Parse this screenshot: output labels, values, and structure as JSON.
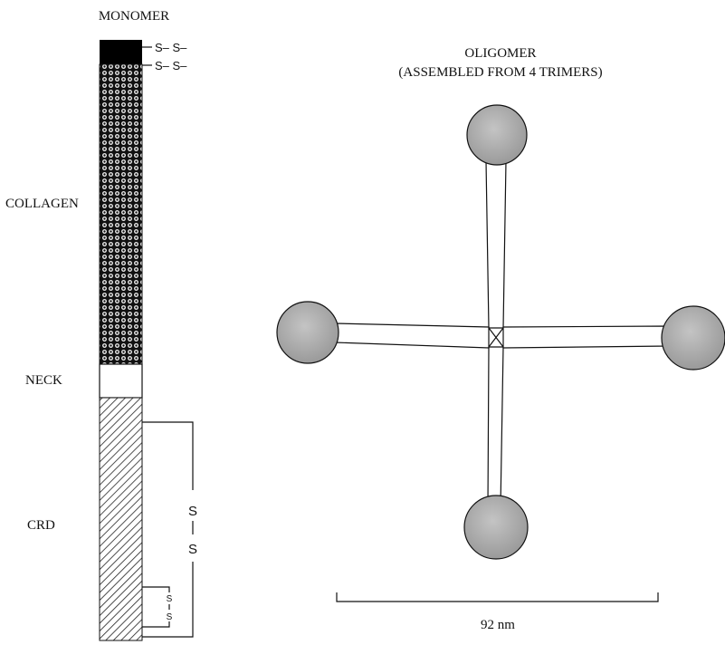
{
  "monomer": {
    "title": "MONOMER",
    "domains": {
      "collagen": "COLLAGEN",
      "neck": "NECK",
      "crd": "CRD"
    },
    "disulfide_top_1": "S– S–",
    "disulfide_top_2": "S– S–",
    "crd_bridge_s1": "S",
    "crd_bridge_bar": "|",
    "crd_bridge_s2": "S",
    "crd_small_s1": "S",
    "crd_small_s2": "S"
  },
  "oligomer": {
    "title_line1": "OLIGOMER",
    "title_line2": "(ASSEMBLED FROM 4 TRIMERS)",
    "scale_label": "92 nm"
  },
  "colors": {
    "sphere_fill": "#a9a9a9",
    "n_terminal_fill": "#000000"
  }
}
